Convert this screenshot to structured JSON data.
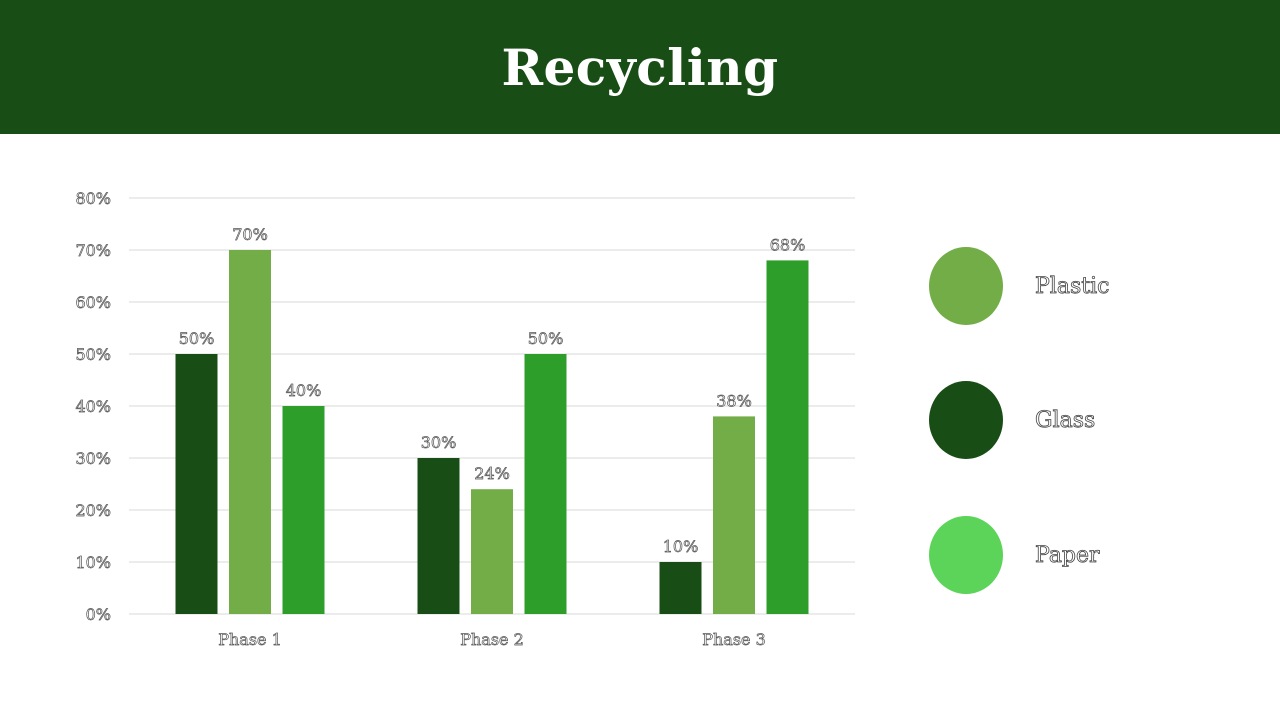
{
  "header": {
    "title": "Recycling"
  },
  "colors": {
    "header_bg": "#194d16",
    "Plastic": "#72ad48",
    "Glass": "#194d16",
    "Paper": "#2e9e2a",
    "Paper_legend": "#5cd45a"
  },
  "legend": [
    {
      "label": "Plastic",
      "color": "#72ad48"
    },
    {
      "label": "Glass",
      "color": "#194d16"
    },
    {
      "label": "Paper",
      "color": "#5cd45a"
    }
  ],
  "chart_data": {
    "type": "bar",
    "categories": [
      "Phase 1",
      "Phase 2",
      "Phase 3"
    ],
    "series": [
      {
        "name": "Glass",
        "values": [
          50,
          30,
          10
        ]
      },
      {
        "name": "Plastic",
        "values": [
          70,
          24,
          38
        ]
      },
      {
        "name": "Paper",
        "values": [
          40,
          50,
          68
        ]
      }
    ],
    "value_suffix": "%",
    "ylim": [
      0,
      80
    ],
    "yticks": [
      0,
      10,
      20,
      30,
      40,
      50,
      60,
      70,
      80
    ],
    "grid": true,
    "legend_position": "right",
    "data_labels": true
  }
}
